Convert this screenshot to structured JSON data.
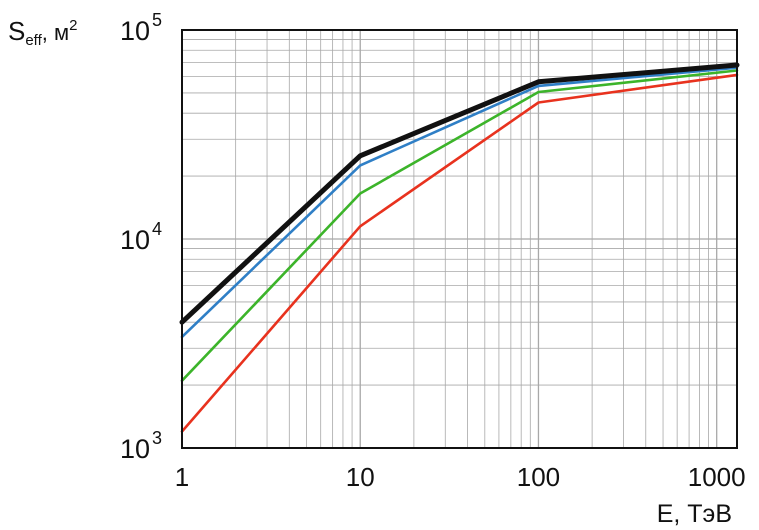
{
  "chart_data": {
    "type": "line",
    "title": "",
    "ylabel_main": "S",
    "ylabel_sub": "eff",
    "ylabel_unit": ", м",
    "ylabel_exp": "2",
    "xlabel": "E, ТэВ",
    "xscale": "log",
    "yscale": "log",
    "xlim": [
      1,
      1300
    ],
    "ylim": [
      1000,
      100000
    ],
    "grid": true,
    "legend": "none",
    "x_ticks": [
      {
        "value": 1,
        "label": "1"
      },
      {
        "value": 10,
        "label": "10"
      },
      {
        "value": 100,
        "label": "100"
      },
      {
        "value": 1000,
        "label": "1000"
      }
    ],
    "y_ticks": [
      {
        "value": 1000,
        "base": "10",
        "exp": "3"
      },
      {
        "value": 10000,
        "base": "10",
        "exp": "4"
      },
      {
        "value": 100000,
        "base": "10",
        "exp": "5"
      }
    ],
    "x": [
      1,
      10,
      100,
      1300
    ],
    "series": [
      {
        "color": "#e8321e",
        "values": [
          1200,
          11500,
          45000,
          61000
        ]
      },
      {
        "color": "#3cb42a",
        "values": [
          2100,
          16500,
          50500,
          64000
        ]
      },
      {
        "color": "#2f7fc6",
        "values": [
          3400,
          22500,
          54000,
          66000
        ]
      },
      {
        "color": "#111111",
        "values": [
          4000,
          25000,
          56500,
          68000
        ]
      }
    ]
  }
}
